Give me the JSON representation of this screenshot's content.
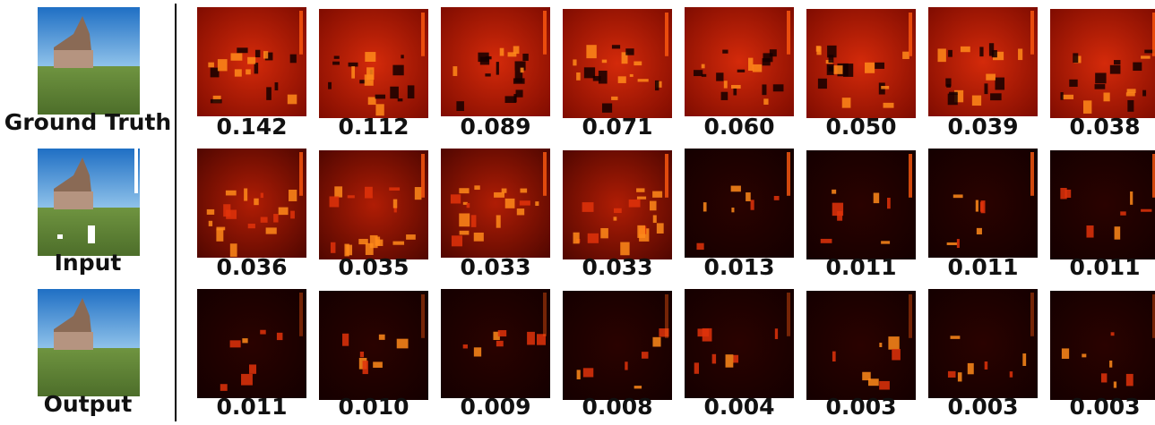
{
  "labels": [
    "Ground Truth",
    "Input",
    "Output"
  ],
  "rows": [
    [
      "0.142",
      "0.112",
      "0.089",
      "0.071",
      "0.060",
      "0.050",
      "0.039",
      "0.038"
    ],
    [
      "0.036",
      "0.035",
      "0.033",
      "0.033",
      "0.013",
      "0.011",
      "0.011",
      "0.011"
    ],
    [
      "0.011",
      "0.010",
      "0.009",
      "0.008",
      "0.004",
      "0.003",
      "0.003",
      "0.003"
    ]
  ]
}
